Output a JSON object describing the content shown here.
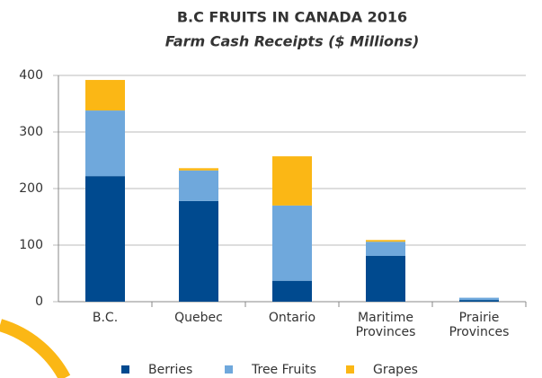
{
  "chart_data": {
    "type": "stacked_bar",
    "title": "B.C FRUITS IN CANADA 2016",
    "subtitle": "Farm Cash Receipts ($ Millions)",
    "categories": [
      "B.C.",
      "Quebec",
      "Ontario",
      "Maritime Provinces",
      "Prairie Provinces"
    ],
    "series": [
      {
        "name": "Berries",
        "color": "#004a8f",
        "values": [
          222,
          178,
          37,
          81,
          3
        ]
      },
      {
        "name": "Tree Fruits",
        "color": "#6fa8dc",
        "values": [
          116,
          54,
          133,
          25,
          4
        ]
      },
      {
        "name": "Grapes",
        "color": "#fbb715",
        "values": [
          54,
          4,
          87,
          3,
          0
        ]
      }
    ],
    "ylim": [
      0,
      400
    ],
    "yticks": [
      0,
      100,
      200,
      300,
      400
    ],
    "grid": true
  }
}
